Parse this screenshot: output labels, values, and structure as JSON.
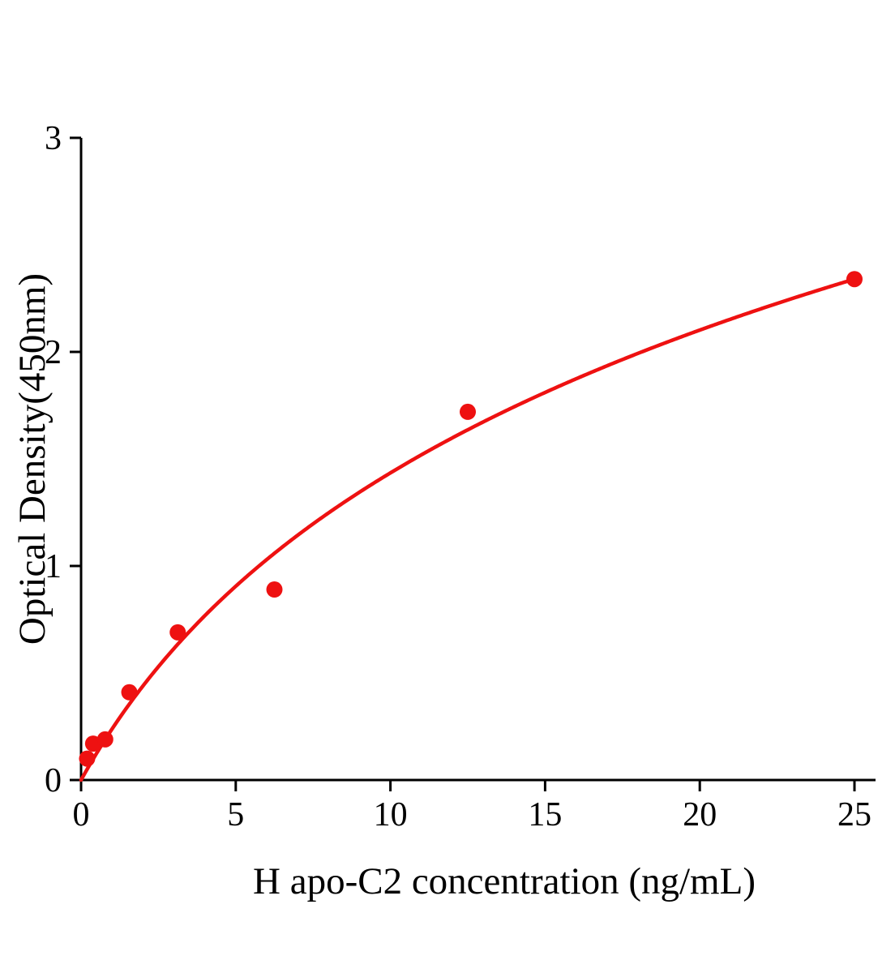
{
  "figure": {
    "background": "#ffffff"
  },
  "chart_data": {
    "type": "scatter",
    "title": "",
    "xlabel": "H apo-C2 concentration (ng/mL)",
    "ylabel": "Optical Density(450nm)",
    "xlim": [
      0,
      25.7
    ],
    "ylim": [
      0,
      3
    ],
    "x_ticks": [
      0,
      5,
      10,
      15,
      20,
      25
    ],
    "y_ticks": [
      0,
      1,
      2,
      3
    ],
    "points": [
      {
        "x": 0.195,
        "y": 0.1
      },
      {
        "x": 0.39,
        "y": 0.17
      },
      {
        "x": 0.78,
        "y": 0.19
      },
      {
        "x": 1.56,
        "y": 0.41
      },
      {
        "x": 3.125,
        "y": 0.69
      },
      {
        "x": 6.25,
        "y": 0.89
      },
      {
        "x": 12.5,
        "y": 1.72
      },
      {
        "x": 25,
        "y": 2.34
      }
    ],
    "fit_curve": {
      "model": "y = a * ln(1 + x/b)",
      "a": 1.306,
      "b": 5.0
    },
    "point_radius": 10,
    "curve_width": 4.5,
    "point_color": "#ee1111",
    "curve_color": "#ee1111",
    "axis_color": "#000000",
    "grid": false,
    "legend": null
  }
}
